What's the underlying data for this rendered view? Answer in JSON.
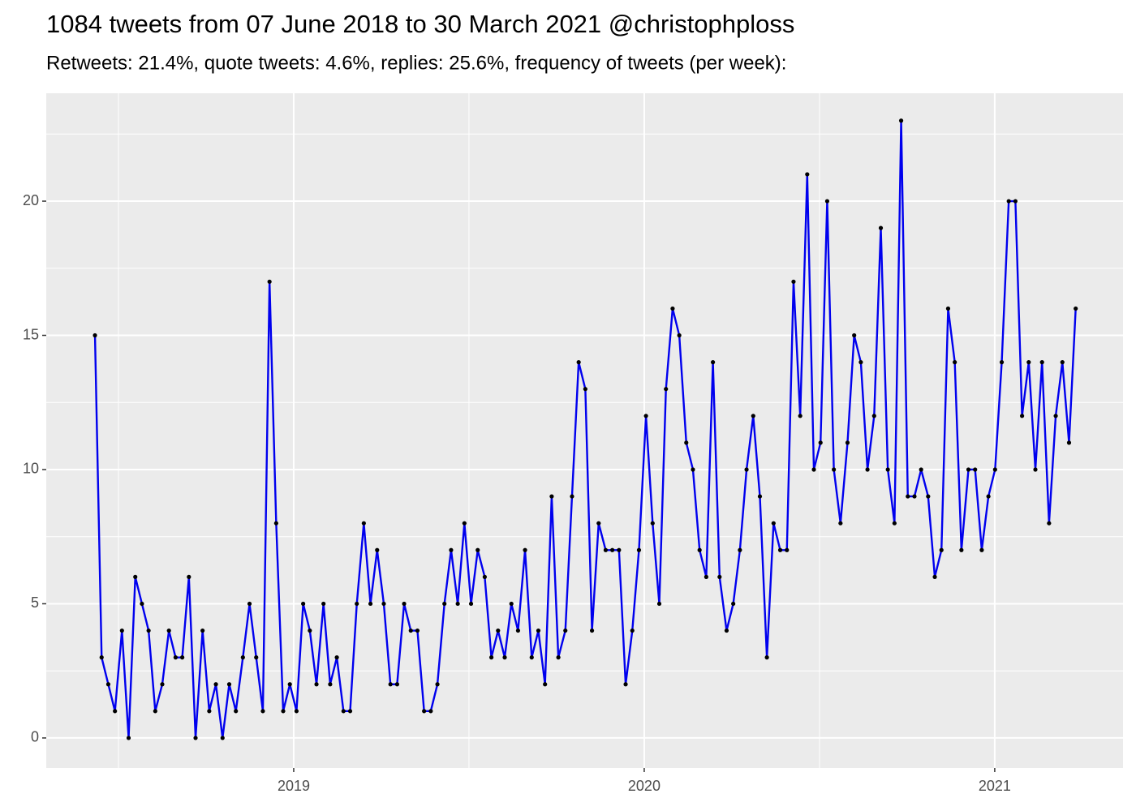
{
  "chart_data": {
    "type": "line",
    "title": "1084 tweets from 07 June 2018 to 30 March 2021 @christophploss",
    "subtitle": "Retweets: 21.4%, quote tweets: 4.6%, replies: 25.6%, frequency of tweets (per week):",
    "x": [
      2018.433,
      2018.452,
      2018.471,
      2018.49,
      2018.51,
      2018.529,
      2018.548,
      2018.567,
      2018.586,
      2018.605,
      2018.625,
      2018.644,
      2018.663,
      2018.682,
      2018.701,
      2018.72,
      2018.74,
      2018.759,
      2018.778,
      2018.797,
      2018.816,
      2018.835,
      2018.855,
      2018.874,
      2018.893,
      2018.912,
      2018.931,
      2018.95,
      2018.97,
      2018.989,
      2019.008,
      2019.027,
      2019.046,
      2019.065,
      2019.085,
      2019.104,
      2019.123,
      2019.142,
      2019.161,
      2019.18,
      2019.2,
      2019.219,
      2019.238,
      2019.257,
      2019.276,
      2019.295,
      2019.315,
      2019.334,
      2019.353,
      2019.372,
      2019.391,
      2019.41,
      2019.43,
      2019.449,
      2019.468,
      2019.487,
      2019.506,
      2019.525,
      2019.545,
      2019.564,
      2019.583,
      2019.602,
      2019.621,
      2019.64,
      2019.66,
      2019.679,
      2019.698,
      2019.717,
      2019.736,
      2019.755,
      2019.775,
      2019.794,
      2019.813,
      2019.832,
      2019.851,
      2019.87,
      2019.89,
      2019.909,
      2019.928,
      2019.947,
      2019.966,
      2019.985,
      2020.005,
      2020.024,
      2020.043,
      2020.062,
      2020.081,
      2020.1,
      2020.12,
      2020.139,
      2020.158,
      2020.177,
      2020.196,
      2020.215,
      2020.235,
      2020.254,
      2020.273,
      2020.292,
      2020.311,
      2020.33,
      2020.35,
      2020.369,
      2020.388,
      2020.407,
      2020.426,
      2020.445,
      2020.465,
      2020.484,
      2020.503,
      2020.522,
      2020.541,
      2020.56,
      2020.58,
      2020.599,
      2020.618,
      2020.637,
      2020.656,
      2020.675,
      2020.695,
      2020.714,
      2020.733,
      2020.752,
      2020.771,
      2020.79,
      2020.81,
      2020.829,
      2020.848,
      2020.867,
      2020.886,
      2020.905,
      2020.925,
      2020.944,
      2020.963,
      2020.982,
      2021.001,
      2021.02,
      2021.04,
      2021.059,
      2021.078,
      2021.097,
      2021.116,
      2021.135,
      2021.155,
      2021.174,
      2021.193,
      2021.212,
      2021.231
    ],
    "series": [
      {
        "color": "#0000ee",
        "point_color": "#000000",
        "values": [
          15,
          3,
          2,
          1,
          4,
          0,
          6,
          5,
          4,
          1,
          2,
          4,
          3,
          3,
          6,
          0,
          4,
          1,
          2,
          0,
          2,
          1,
          3,
          5,
          3,
          1,
          17,
          8,
          1,
          2,
          1,
          5,
          4,
          2,
          5,
          2,
          3,
          1,
          1,
          5,
          8,
          5,
          7,
          5,
          2,
          2,
          5,
          4,
          4,
          1,
          1,
          2,
          5,
          7,
          5,
          8,
          5,
          7,
          6,
          3,
          4,
          3,
          5,
          4,
          7,
          3,
          4,
          2,
          9,
          3,
          4,
          9,
          14,
          13,
          4,
          8,
          7,
          7,
          7,
          2,
          4,
          7,
          12,
          8,
          5,
          13,
          16,
          15,
          11,
          10,
          7,
          6,
          14,
          6,
          4,
          5,
          7,
          10,
          12,
          9,
          3,
          8,
          7,
          7,
          17,
          12,
          21,
          10,
          11,
          20,
          10,
          8,
          11,
          15,
          14,
          10,
          12,
          19,
          10,
          8,
          23,
          9,
          9,
          10,
          9,
          6,
          7,
          16,
          14,
          7,
          10,
          10,
          7,
          9,
          10,
          14,
          20,
          20,
          12,
          14,
          10,
          14,
          8,
          12,
          14,
          11,
          16
        ]
      }
    ],
    "xlim": [
      2018.294,
      2021.366
    ],
    "xticks": [
      2019,
      2020,
      2021
    ],
    "xminorticks": [
      2018.5,
      2019.5,
      2020.5
    ],
    "ylim": [
      -1.12,
      24.02
    ],
    "yticks": [
      0,
      5,
      10,
      15,
      20
    ],
    "yminorticks": [
      2.5,
      7.5,
      12.5,
      17.5,
      22.5
    ],
    "grid": true
  }
}
